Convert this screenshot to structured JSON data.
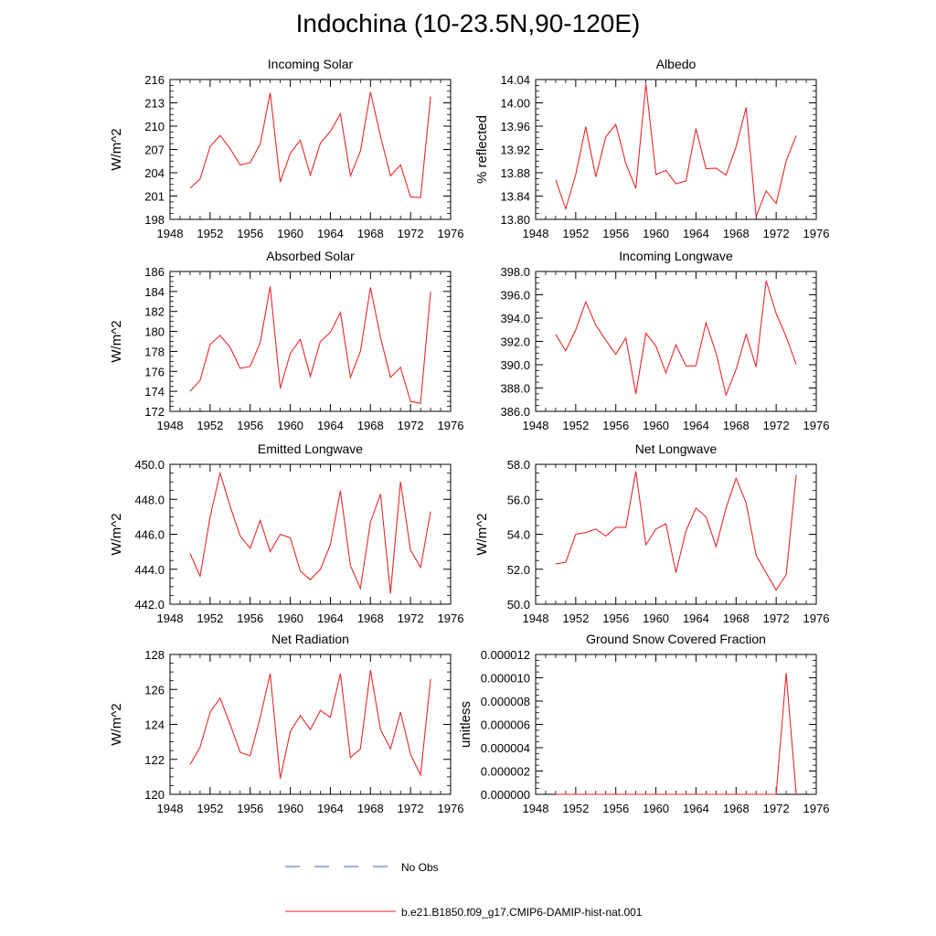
{
  "title": "Indochina (10-23.5N,90-120E)",
  "legend": {
    "placement": "bottom-center",
    "entries": [
      {
        "label": "No Obs",
        "style": "dashed",
        "color": "#4a5fa8"
      },
      {
        "label": "b.e21.B1850.f09_g17.CMIP6-DAMIP-hist-nat.001",
        "style": "solid",
        "color": "#e8272a"
      }
    ]
  },
  "chart_data": [
    {
      "type": "line",
      "title": "Incoming Solar",
      "ylabel": "W/m^2",
      "xlim": [
        1948,
        1976
      ],
      "ylim": [
        198,
        216
      ],
      "xticks": [
        1948,
        1952,
        1956,
        1960,
        1964,
        1968,
        1972,
        1976
      ],
      "yticks": [
        198,
        201,
        204,
        207,
        210,
        213,
        216
      ],
      "ytick_labels": [
        "198",
        "201",
        "204",
        "207",
        "210",
        "213",
        "216"
      ],
      "x": [
        1950,
        1951,
        1952,
        1953,
        1954,
        1955,
        1956,
        1957,
        1958,
        1959,
        1960,
        1961,
        1962,
        1963,
        1964,
        1965,
        1966,
        1967,
        1968,
        1969,
        1970,
        1971,
        1972,
        1973,
        1974
      ],
      "series": [
        {
          "name": "b.e21.B1850.f09_g17.CMIP6-DAMIP-hist-nat.001",
          "color": "#e8272a",
          "values": [
            202.0,
            203.2,
            207.4,
            208.8,
            207.1,
            205.0,
            205.3,
            207.7,
            214.3,
            202.8,
            206.5,
            208.2,
            203.7,
            207.8,
            209.3,
            211.6,
            203.6,
            206.8,
            214.4,
            208.7,
            203.6,
            205.0,
            200.9,
            200.8,
            213.8
          ]
        }
      ]
    },
    {
      "type": "line",
      "title": "Albedo",
      "ylabel": "% reflected",
      "xlim": [
        1948,
        1976
      ],
      "ylim": [
        13.8,
        14.04
      ],
      "xticks": [
        1948,
        1952,
        1956,
        1960,
        1964,
        1968,
        1972,
        1976
      ],
      "yticks": [
        13.8,
        13.84,
        13.88,
        13.92,
        13.96,
        14.0,
        14.04
      ],
      "ytick_labels": [
        "13.80",
        "13.84",
        "13.88",
        "13.92",
        "13.96",
        "14.00",
        "14.04"
      ],
      "x": [
        1950,
        1951,
        1952,
        1953,
        1954,
        1955,
        1956,
        1957,
        1958,
        1959,
        1960,
        1961,
        1962,
        1963,
        1964,
        1965,
        1966,
        1967,
        1968,
        1969,
        1970,
        1971,
        1972,
        1973,
        1974
      ],
      "series": [
        {
          "name": "b.e21.B1850.f09_g17.CMIP6-DAMIP-hist-nat.001",
          "color": "#e8272a",
          "values": [
            13.868,
            13.818,
            13.877,
            13.959,
            13.873,
            13.942,
            13.963,
            13.896,
            13.853,
            14.033,
            13.877,
            13.884,
            13.861,
            13.866,
            13.956,
            13.887,
            13.888,
            13.876,
            13.925,
            13.992,
            13.805,
            13.849,
            13.827,
            13.9,
            13.944
          ]
        }
      ]
    },
    {
      "type": "line",
      "title": "Absorbed Solar",
      "ylabel": "W/m^2",
      "xlim": [
        1948,
        1976
      ],
      "ylim": [
        172,
        186
      ],
      "xticks": [
        1948,
        1952,
        1956,
        1960,
        1964,
        1968,
        1972,
        1976
      ],
      "yticks": [
        172,
        174,
        176,
        178,
        180,
        182,
        184,
        186
      ],
      "ytick_labels": [
        "172",
        "174",
        "176",
        "178",
        "180",
        "182",
        "184",
        "186"
      ],
      "x": [
        1950,
        1951,
        1952,
        1953,
        1954,
        1955,
        1956,
        1957,
        1958,
        1959,
        1960,
        1961,
        1962,
        1963,
        1964,
        1965,
        1966,
        1967,
        1968,
        1969,
        1970,
        1971,
        1972,
        1973,
        1974
      ],
      "series": [
        {
          "name": "b.e21.B1850.f09_g17.CMIP6-DAMIP-hist-nat.001",
          "color": "#e8272a",
          "values": [
            174.0,
            175.1,
            178.7,
            179.6,
            178.4,
            176.3,
            176.5,
            178.9,
            184.5,
            174.3,
            177.8,
            179.2,
            175.5,
            179.0,
            179.9,
            181.9,
            175.4,
            178.0,
            184.4,
            179.4,
            175.4,
            176.4,
            173.0,
            172.8,
            184.0
          ]
        }
      ]
    },
    {
      "type": "line",
      "title": "Incoming Longwave",
      "ylabel": "",
      "xlim": [
        1948,
        1976
      ],
      "ylim": [
        386,
        398
      ],
      "xticks": [
        1948,
        1952,
        1956,
        1960,
        1964,
        1968,
        1972,
        1976
      ],
      "yticks": [
        386,
        388,
        390,
        392,
        394,
        396,
        398
      ],
      "ytick_labels": [
        "386.0",
        "388.0",
        "390.0",
        "392.0",
        "394.0",
        "396.0",
        "398.0"
      ],
      "x": [
        1950,
        1951,
        1952,
        1953,
        1954,
        1955,
        1956,
        1957,
        1958,
        1959,
        1960,
        1961,
        1962,
        1963,
        1964,
        1965,
        1966,
        1967,
        1968,
        1969,
        1970,
        1971,
        1972,
        1973,
        1974
      ],
      "series": [
        {
          "name": "b.e21.B1850.f09_g17.CMIP6-DAMIP-hist-nat.001",
          "color": "#e8272a",
          "values": [
            392.6,
            391.2,
            393.0,
            395.4,
            393.4,
            392.1,
            390.9,
            392.3,
            387.5,
            392.7,
            391.6,
            389.3,
            391.7,
            389.9,
            389.9,
            393.6,
            391.0,
            387.4,
            389.6,
            392.6,
            389.8,
            397.2,
            394.4,
            392.4,
            390.0
          ]
        }
      ]
    },
    {
      "type": "line",
      "title": "Emitted Longwave",
      "ylabel": "W/m^2",
      "xlim": [
        1948,
        1976
      ],
      "ylim": [
        442,
        450
      ],
      "xticks": [
        1948,
        1952,
        1956,
        1960,
        1964,
        1968,
        1972,
        1976
      ],
      "yticks": [
        442,
        444,
        446,
        448,
        450
      ],
      "ytick_labels": [
        "442.0",
        "444.0",
        "446.0",
        "448.0",
        "450.0"
      ],
      "x": [
        1950,
        1951,
        1952,
        1953,
        1954,
        1955,
        1956,
        1957,
        1958,
        1959,
        1960,
        1961,
        1962,
        1963,
        1964,
        1965,
        1966,
        1967,
        1968,
        1969,
        1970,
        1971,
        1972,
        1973,
        1974
      ],
      "series": [
        {
          "name": "b.e21.B1850.f09_g17.CMIP6-DAMIP-hist-nat.001",
          "color": "#e8272a",
          "values": [
            444.9,
            443.6,
            447.0,
            449.5,
            447.6,
            445.9,
            445.2,
            446.8,
            445.0,
            446.0,
            445.8,
            443.9,
            443.4,
            444.0,
            445.4,
            448.5,
            444.2,
            442.9,
            446.7,
            448.3,
            442.6,
            449.0,
            445.1,
            444.1,
            447.3
          ]
        }
      ]
    },
    {
      "type": "line",
      "title": "Net Longwave",
      "ylabel": "W/m^2",
      "xlim": [
        1948,
        1976
      ],
      "ylim": [
        50,
        58
      ],
      "xticks": [
        1948,
        1952,
        1956,
        1960,
        1964,
        1968,
        1972,
        1976
      ],
      "yticks": [
        50,
        52,
        54,
        56,
        58
      ],
      "ytick_labels": [
        "50.0",
        "52.0",
        "54.0",
        "56.0",
        "58.0"
      ],
      "x": [
        1950,
        1951,
        1952,
        1953,
        1954,
        1955,
        1956,
        1957,
        1958,
        1959,
        1960,
        1961,
        1962,
        1963,
        1964,
        1965,
        1966,
        1967,
        1968,
        1969,
        1970,
        1971,
        1972,
        1973,
        1974
      ],
      "series": [
        {
          "name": "b.e21.B1850.f09_g17.CMIP6-DAMIP-hist-nat.001",
          "color": "#e8272a",
          "values": [
            52.3,
            52.4,
            54.0,
            54.1,
            54.3,
            53.9,
            54.4,
            54.4,
            57.6,
            53.4,
            54.3,
            54.6,
            51.8,
            54.2,
            55.5,
            55.0,
            53.3,
            55.5,
            57.2,
            55.8,
            52.8,
            51.8,
            50.8,
            51.7,
            57.4
          ]
        }
      ]
    },
    {
      "type": "line",
      "title": "Net Radiation",
      "ylabel": "W/m^2",
      "xlim": [
        1948,
        1976
      ],
      "ylim": [
        120,
        128
      ],
      "xticks": [
        1948,
        1952,
        1956,
        1960,
        1964,
        1968,
        1972,
        1976
      ],
      "yticks": [
        120,
        122,
        124,
        126,
        128
      ],
      "ytick_labels": [
        "120",
        "122",
        "124",
        "126",
        "128"
      ],
      "x": [
        1950,
        1951,
        1952,
        1953,
        1954,
        1955,
        1956,
        1957,
        1958,
        1959,
        1960,
        1961,
        1962,
        1963,
        1964,
        1965,
        1966,
        1967,
        1968,
        1969,
        1970,
        1971,
        1972,
        1973,
        1974
      ],
      "series": [
        {
          "name": "b.e21.B1850.f09_g17.CMIP6-DAMIP-hist-nat.001",
          "color": "#e8272a",
          "values": [
            121.7,
            122.7,
            124.7,
            125.5,
            124.0,
            122.4,
            122.2,
            124.4,
            126.9,
            120.9,
            123.6,
            124.5,
            123.7,
            124.8,
            124.4,
            126.9,
            122.1,
            122.6,
            127.1,
            123.7,
            122.6,
            124.7,
            122.3,
            121.1,
            126.6
          ]
        }
      ]
    },
    {
      "type": "line",
      "title": "Ground Snow Covered Fraction",
      "ylabel": "unitless",
      "xlim": [
        1948,
        1976
      ],
      "ylim": [
        0,
        1.2e-05
      ],
      "xticks": [
        1948,
        1952,
        1956,
        1960,
        1964,
        1968,
        1972,
        1976
      ],
      "yticks": [
        0,
        2e-06,
        4e-06,
        6e-06,
        8e-06,
        1e-05,
        1.2e-05
      ],
      "ytick_labels": [
        "0.000000",
        "0.000002",
        "0.000004",
        "0.000006",
        "0.000008",
        "0.000010",
        "0.000012"
      ],
      "x": [
        1950,
        1951,
        1952,
        1953,
        1954,
        1955,
        1956,
        1957,
        1958,
        1959,
        1960,
        1961,
        1962,
        1963,
        1964,
        1965,
        1966,
        1967,
        1968,
        1969,
        1970,
        1971,
        1972,
        1973,
        1974
      ],
      "series": [
        {
          "name": "b.e21.B1850.f09_g17.CMIP6-DAMIP-hist-nat.001",
          "color": "#e8272a",
          "values": [
            0,
            0,
            0,
            0,
            0,
            0,
            0,
            0,
            0,
            0,
            0,
            0,
            0,
            0,
            0,
            0,
            0,
            0,
            0,
            0,
            0,
            0,
            0,
            1.04e-05,
            0
          ]
        }
      ]
    }
  ]
}
